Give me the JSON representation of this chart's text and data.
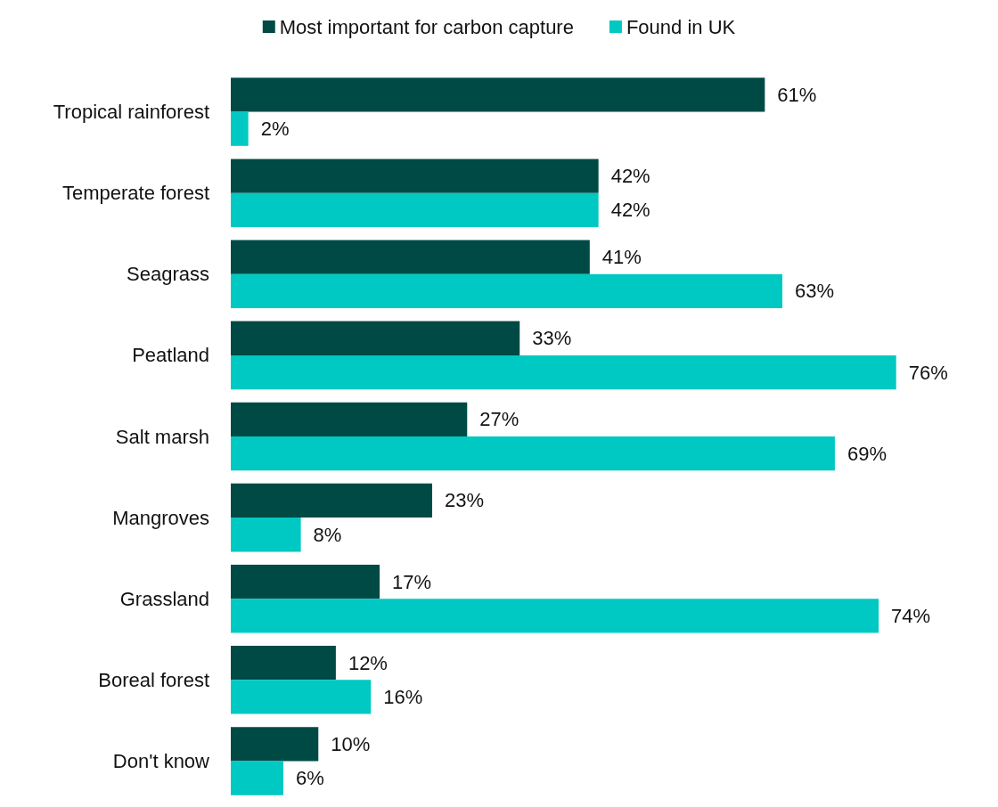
{
  "chart_data": {
    "type": "bar",
    "orientation": "horizontal",
    "legend": "top",
    "categories": [
      "Tropical rainforest",
      "Temperate forest",
      "Seagrass",
      "Peatland",
      "Salt marsh",
      "Mangroves",
      "Grassland",
      "Boreal forest",
      "Don't know"
    ],
    "series": [
      {
        "name": "Most important for carbon capture",
        "color": "#004a45",
        "values": [
          61,
          42,
          41,
          33,
          27,
          23,
          17,
          12,
          10
        ],
        "value_labels": [
          "61%",
          "42%",
          "41%",
          "33%",
          "27%",
          "23%",
          "17%",
          "12%",
          "10%"
        ]
      },
      {
        "name": "Found in UK",
        "color": "#00c8c2",
        "values": [
          2,
          42,
          63,
          76,
          69,
          8,
          74,
          16,
          6
        ],
        "value_labels": [
          "2%",
          "42%",
          "63%",
          "76%",
          "69%",
          "8%",
          "74%",
          "16%",
          "6%"
        ]
      }
    ]
  }
}
